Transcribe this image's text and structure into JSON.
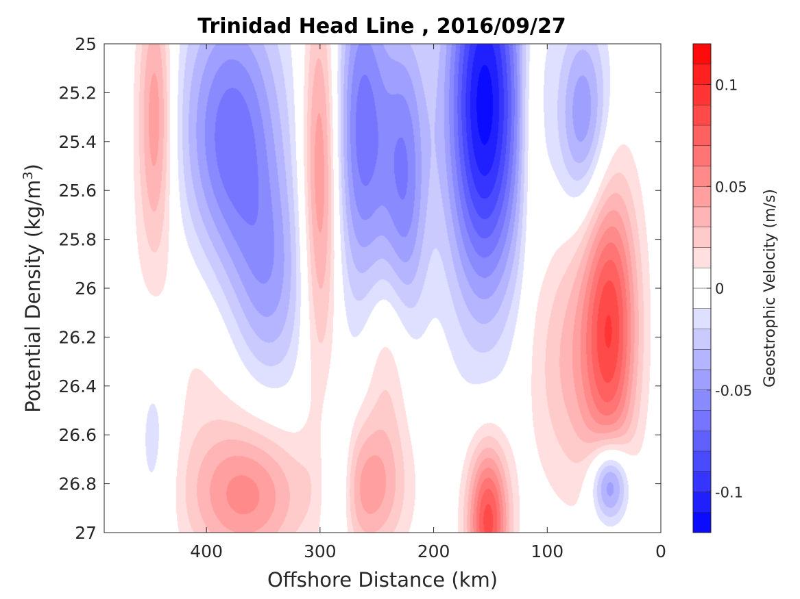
{
  "chart_data": {
    "type": "heatmap",
    "title": "Trinidad Head Line , 2016/09/27",
    "xlabel": "Offshore Distance (km)",
    "ylabel_prefix": "Potential Density (kg/m",
    "ylabel_sup": "3",
    "ylabel_suffix": ")",
    "x_axis": {
      "range": [
        490,
        0
      ],
      "reversed": true,
      "ticks": [
        400,
        300,
        200,
        100,
        0
      ],
      "tick_labels": [
        "400",
        "300",
        "200",
        "100",
        "0"
      ]
    },
    "y_axis": {
      "range": [
        25,
        27
      ],
      "reversed": true,
      "ticks": [
        25,
        25.2,
        25.4,
        25.6,
        25.8,
        26,
        26.2,
        26.4,
        26.6,
        26.8,
        27
      ],
      "tick_labels": [
        "25",
        "25.2",
        "25.4",
        "25.6",
        "25.8",
        "26",
        "26.2",
        "26.4",
        "26.6",
        "26.8",
        "27"
      ]
    },
    "colorbar": {
      "label": "Geostrophic Velocity (m/s)",
      "range": [
        -0.12,
        0.12
      ],
      "ticks": [
        0.1,
        0.05,
        0,
        -0.05,
        -0.1
      ],
      "tick_labels": [
        "0.1",
        "0.05",
        "0",
        "-0.05",
        "-0.1"
      ],
      "levels": 24,
      "neutral_band": [
        -0.01,
        0.01
      ],
      "color_max": "#ff0000",
      "color_min": "#0000ff",
      "color_zero": "#ffffff"
    },
    "features": [
      {
        "x": 445,
        "y": 25.3,
        "sx": 11,
        "sy": 0.4,
        "v": 0.05
      },
      {
        "x": 378,
        "y": 25.4,
        "sx": 32,
        "sy": 0.42,
        "v": -0.07
      },
      {
        "x": 345,
        "y": 26.0,
        "sx": 24,
        "sy": 0.32,
        "v": -0.04
      },
      {
        "x": 300,
        "y": 25.55,
        "sx": 11,
        "sy": 0.55,
        "v": 0.055
      },
      {
        "x": 262,
        "y": 25.35,
        "sx": 17,
        "sy": 0.5,
        "v": -0.065
      },
      {
        "x": 225,
        "y": 25.55,
        "sx": 14,
        "sy": 0.45,
        "v": -0.055
      },
      {
        "x": 155,
        "y": 25.25,
        "sx": 24,
        "sy": 0.55,
        "v": -0.115
      },
      {
        "x": 115,
        "y": 25.3,
        "sx": 7,
        "sy": 0.4,
        "v": 0.022
      },
      {
        "x": 68,
        "y": 25.3,
        "sx": 16,
        "sy": 0.28,
        "v": -0.05
      },
      {
        "x": 44,
        "y": 26.15,
        "sx": 17,
        "sy": 0.42,
        "v": 0.08
      },
      {
        "x": 80,
        "y": 26.3,
        "sx": 26,
        "sy": 0.38,
        "v": 0.03
      },
      {
        "x": 365,
        "y": 26.85,
        "sx": 36,
        "sy": 0.2,
        "v": 0.05
      },
      {
        "x": 400,
        "y": 26.2,
        "sx": 45,
        "sy": 0.5,
        "v": 0.015
      },
      {
        "x": 258,
        "y": 26.82,
        "sx": 24,
        "sy": 0.2,
        "v": 0.045
      },
      {
        "x": 240,
        "y": 26.3,
        "sx": 15,
        "sy": 0.28,
        "v": 0.025
      },
      {
        "x": 285,
        "y": 26.8,
        "sx": 10,
        "sy": 0.22,
        "v": -0.035
      },
      {
        "x": 152,
        "y": 26.95,
        "sx": 13,
        "sy": 0.22,
        "v": 0.085
      },
      {
        "x": 45,
        "y": 26.8,
        "sx": 12,
        "sy": 0.12,
        "v": -0.07
      },
      {
        "x": 445,
        "y": 26.6,
        "sx": 14,
        "sy": 0.35,
        "v": -0.02
      }
    ]
  }
}
